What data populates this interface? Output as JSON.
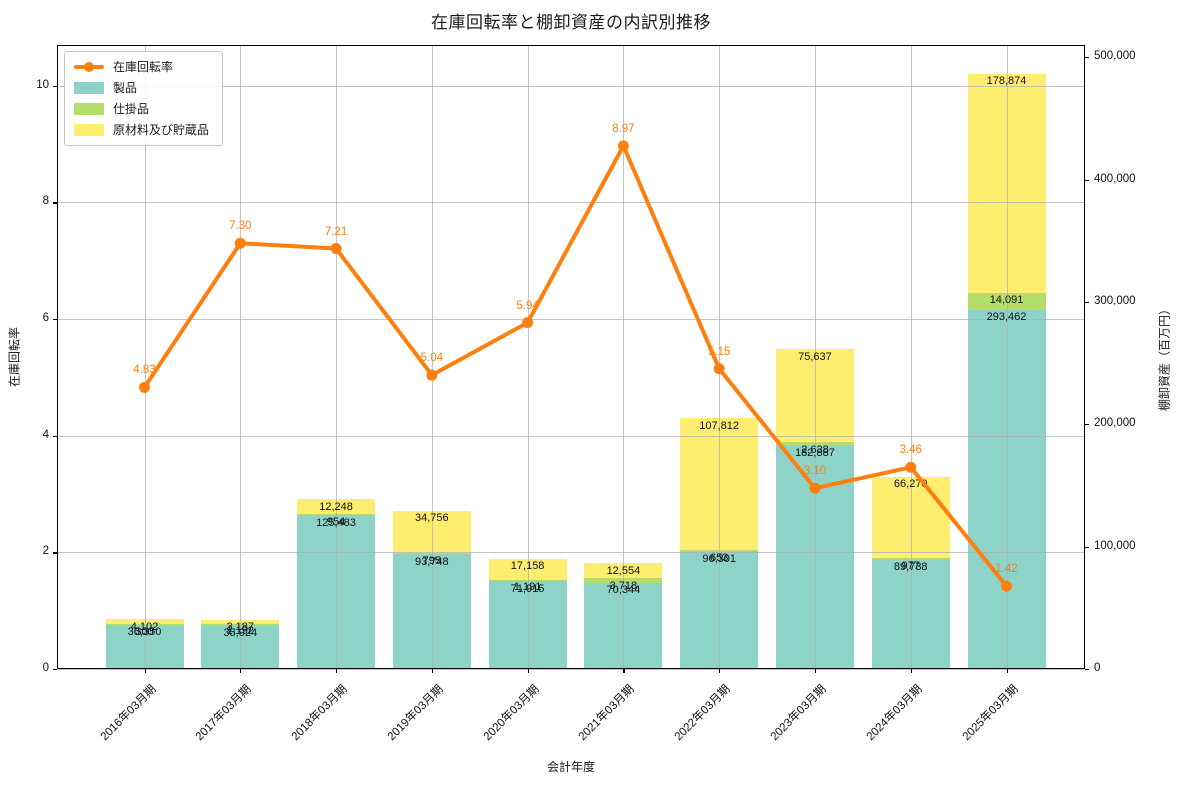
{
  "title": "在庫回転率と棚卸資産の内訳別推移",
  "chart_data": {
    "type": "combo",
    "subtype": "stacked-bar + line, dual y-axis",
    "categories": [
      "2016年03月期",
      "2017年03月期",
      "2018年03月期",
      "2019年03月期",
      "2020年03月期",
      "2021年03月期",
      "2022年03月期",
      "2023年03月期",
      "2024年03月期",
      "2025年03月期"
    ],
    "stacked_bar_series": [
      {
        "name": "製品",
        "color": "#8dd3c7",
        "axis": "right",
        "values": [
          36350,
          35924,
          125483,
          93748,
          71915,
          70344,
          96301,
          182887,
          89738,
          293462
        ]
      },
      {
        "name": "仕掛品",
        "color": "#b3de69",
        "axis": "right",
        "values": [
          300,
          1192,
          954,
          795,
          1191,
          3718,
          653,
          2638,
          977,
          14091
        ]
      },
      {
        "name": "原材料及び貯蔵品",
        "color": "#ffed6f",
        "axis": "right",
        "values": [
          4102,
          3187,
          12248,
          34756,
          17158,
          12554,
          107812,
          75637,
          66270,
          178874
        ]
      }
    ],
    "line_series": {
      "name": "在庫回転率",
      "color": "#ff7f0e",
      "axis": "left",
      "values": [
        4.83,
        7.3,
        7.21,
        5.04,
        5.94,
        8.97,
        5.15,
        3.1,
        3.46,
        1.42
      ]
    },
    "left_axis": {
      "label": "在庫回転率",
      "ticks": [
        0,
        2,
        4,
        6,
        8,
        10
      ],
      "min": 0,
      "max": 10.7
    },
    "right_axis": {
      "label": "棚卸資産（百万円）",
      "ticks": [
        0,
        100000,
        200000,
        300000,
        400000,
        500000
      ],
      "min": 0,
      "max": 510000
    },
    "xlabel": "会計年度",
    "grid": true,
    "legend_position": "upper-left",
    "legend_order": [
      "在庫回転率",
      "製品",
      "仕掛品",
      "原材料及び貯蔵品"
    ]
  }
}
